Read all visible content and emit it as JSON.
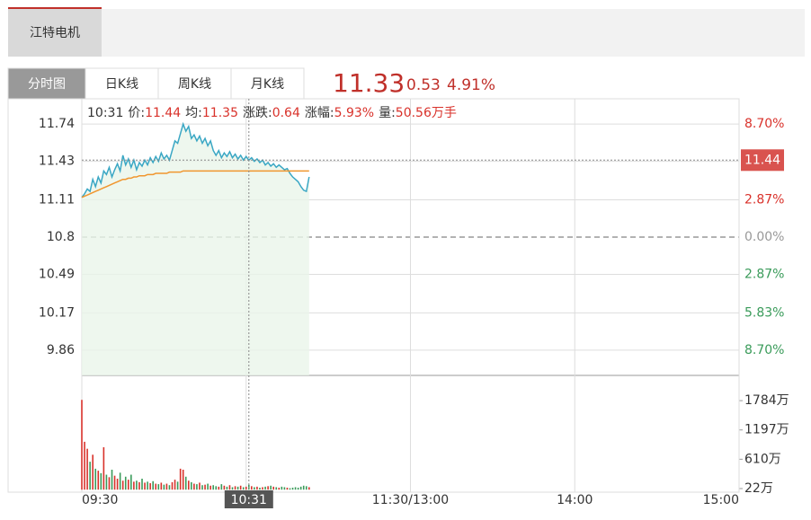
{
  "header": {
    "stock_tab": "江特电机"
  },
  "tabs": [
    "分时图",
    "日K线",
    "周K线",
    "月K线"
  ],
  "quote": {
    "price": 11.33,
    "change": 0.53,
    "change_pct": "4.91%"
  },
  "chart_data": {
    "type": "intraday",
    "info": {
      "time": "10:31",
      "items": [
        {
          "label": "价:",
          "value": 11.44
        },
        {
          "label": "均:",
          "value": 11.35
        },
        {
          "label": "涨跌:",
          "value": 0.64
        },
        {
          "label": "涨幅:",
          "value": "5.93%"
        },
        {
          "label": "量:",
          "value": "50.56万手"
        }
      ]
    },
    "x": [
      0,
      1,
      2,
      3,
      4,
      5,
      6,
      7,
      8,
      9,
      10,
      11,
      12,
      13,
      14,
      15,
      16,
      17,
      18,
      19,
      20,
      21,
      22,
      23,
      24,
      25,
      26,
      27,
      28,
      29,
      30,
      31,
      32,
      33,
      34,
      35,
      36,
      37,
      38,
      39,
      40,
      41,
      42,
      43,
      44,
      45,
      46,
      47,
      48,
      49,
      50,
      51,
      52,
      53,
      54,
      55,
      56,
      57,
      58,
      59,
      60,
      61,
      62,
      63,
      64,
      65,
      66,
      67,
      68,
      69,
      70,
      71,
      72,
      73,
      74,
      75,
      76,
      77,
      78,
      79,
      80,
      81,
      82,
      83
    ],
    "xlim": [
      0,
      240
    ],
    "xticks": [
      {
        "value": 0,
        "label": "09:30"
      },
      {
        "value": 60,
        "label": null
      },
      {
        "value": 120,
        "label": "11:30/13:00"
      },
      {
        "value": 180,
        "label": "14:00"
      },
      {
        "value": 240,
        "label": "15:00"
      }
    ],
    "series": [
      {
        "color": "#3aa7c4",
        "values": [
          11.13,
          11.16,
          11.2,
          11.18,
          11.28,
          11.22,
          11.3,
          11.25,
          11.35,
          11.32,
          11.38,
          11.3,
          11.36,
          11.41,
          11.35,
          11.48,
          11.4,
          11.45,
          11.38,
          11.44,
          11.36,
          11.42,
          11.39,
          11.44,
          11.4,
          11.46,
          11.42,
          11.47,
          11.43,
          11.5,
          11.45,
          11.48,
          11.44,
          11.52,
          11.6,
          11.58,
          11.66,
          11.74,
          11.68,
          11.72,
          11.62,
          11.65,
          11.6,
          11.64,
          11.58,
          11.62,
          11.56,
          11.6,
          11.52,
          11.48,
          11.52,
          11.46,
          11.5,
          11.47,
          11.51,
          11.46,
          11.49,
          11.45,
          11.48,
          11.44,
          11.47,
          11.44,
          11.46,
          11.43,
          11.45,
          11.42,
          11.44,
          11.4,
          11.42,
          11.39,
          11.41,
          11.38,
          11.4,
          11.38,
          11.36,
          11.37,
          11.33,
          11.3,
          11.28,
          11.26,
          11.22,
          11.19,
          11.18,
          11.3
        ]
      },
      {
        "color": "#f0962e",
        "values": [
          11.13,
          11.14,
          11.15,
          11.16,
          11.17,
          11.18,
          11.19,
          11.2,
          11.21,
          11.22,
          11.23,
          11.24,
          11.25,
          11.26,
          11.27,
          11.28,
          11.28,
          11.29,
          11.29,
          11.3,
          11.3,
          11.31,
          11.31,
          11.31,
          11.32,
          11.32,
          11.32,
          11.33,
          11.33,
          11.33,
          11.33,
          11.33,
          11.34,
          11.34,
          11.34,
          11.34,
          11.34,
          11.35,
          11.35,
          11.35,
          11.35,
          11.35,
          11.35,
          11.35,
          11.35,
          11.35,
          11.35,
          11.35,
          11.35,
          11.35,
          11.35,
          11.35,
          11.35,
          11.35,
          11.35,
          11.35,
          11.35,
          11.35,
          11.35,
          11.35,
          11.35,
          11.35,
          11.35,
          11.35,
          11.35,
          11.35,
          11.35,
          11.35,
          11.35,
          11.35,
          11.35,
          11.35,
          11.35,
          11.35,
          11.35,
          11.35,
          11.35,
          11.35,
          11.35,
          11.35,
          11.35,
          11.35,
          11.35,
          11.35
        ]
      }
    ],
    "ylim": [
      9.65,
      11.95
    ],
    "yticks": [
      11.74,
      11.43,
      11.11,
      10.8,
      10.49,
      10.17,
      9.86
    ],
    "y_right_labels": [
      "8.70%",
      null,
      "2.87%",
      "0.00%",
      "2.87%",
      "5.83%",
      "8.70%"
    ],
    "prev_close": 10.8,
    "up_color": "#d9322b",
    "down_color": "#3a9b5a",
    "cursor": {
      "x": {
        "value": 61,
        "label": "10:31"
      },
      "price": 11.44
    },
    "volume": {
      "values": [
        1800,
        960,
        820,
        560,
        700,
        420,
        380,
        330,
        850,
        300,
        250,
        400,
        280,
        220,
        340,
        180,
        260,
        200,
        300,
        160,
        180,
        150,
        220,
        140,
        160,
        130,
        170,
        120,
        110,
        140,
        100,
        120,
        90,
        150,
        200,
        160,
        420,
        400,
        260,
        180,
        150,
        120,
        110,
        140,
        90,
        100,
        120,
        80,
        90,
        70,
        60,
        110,
        80,
        60,
        90,
        50,
        70,
        60,
        80,
        50,
        60,
        100,
        70,
        50,
        60,
        40,
        50,
        60,
        70,
        80,
        60,
        50,
        40,
        60,
        50,
        40,
        30,
        40,
        50,
        40,
        60,
        80,
        70,
        50
      ],
      "ylim": [
        -50,
        2290
      ],
      "yticks": [
        {
          "value": 1784,
          "label": "1784万"
        },
        {
          "value": 1197,
          "label": "1197万"
        },
        {
          "value": 610,
          "label": "610万"
        },
        {
          "value": 22,
          "label": "22万"
        }
      ]
    }
  }
}
